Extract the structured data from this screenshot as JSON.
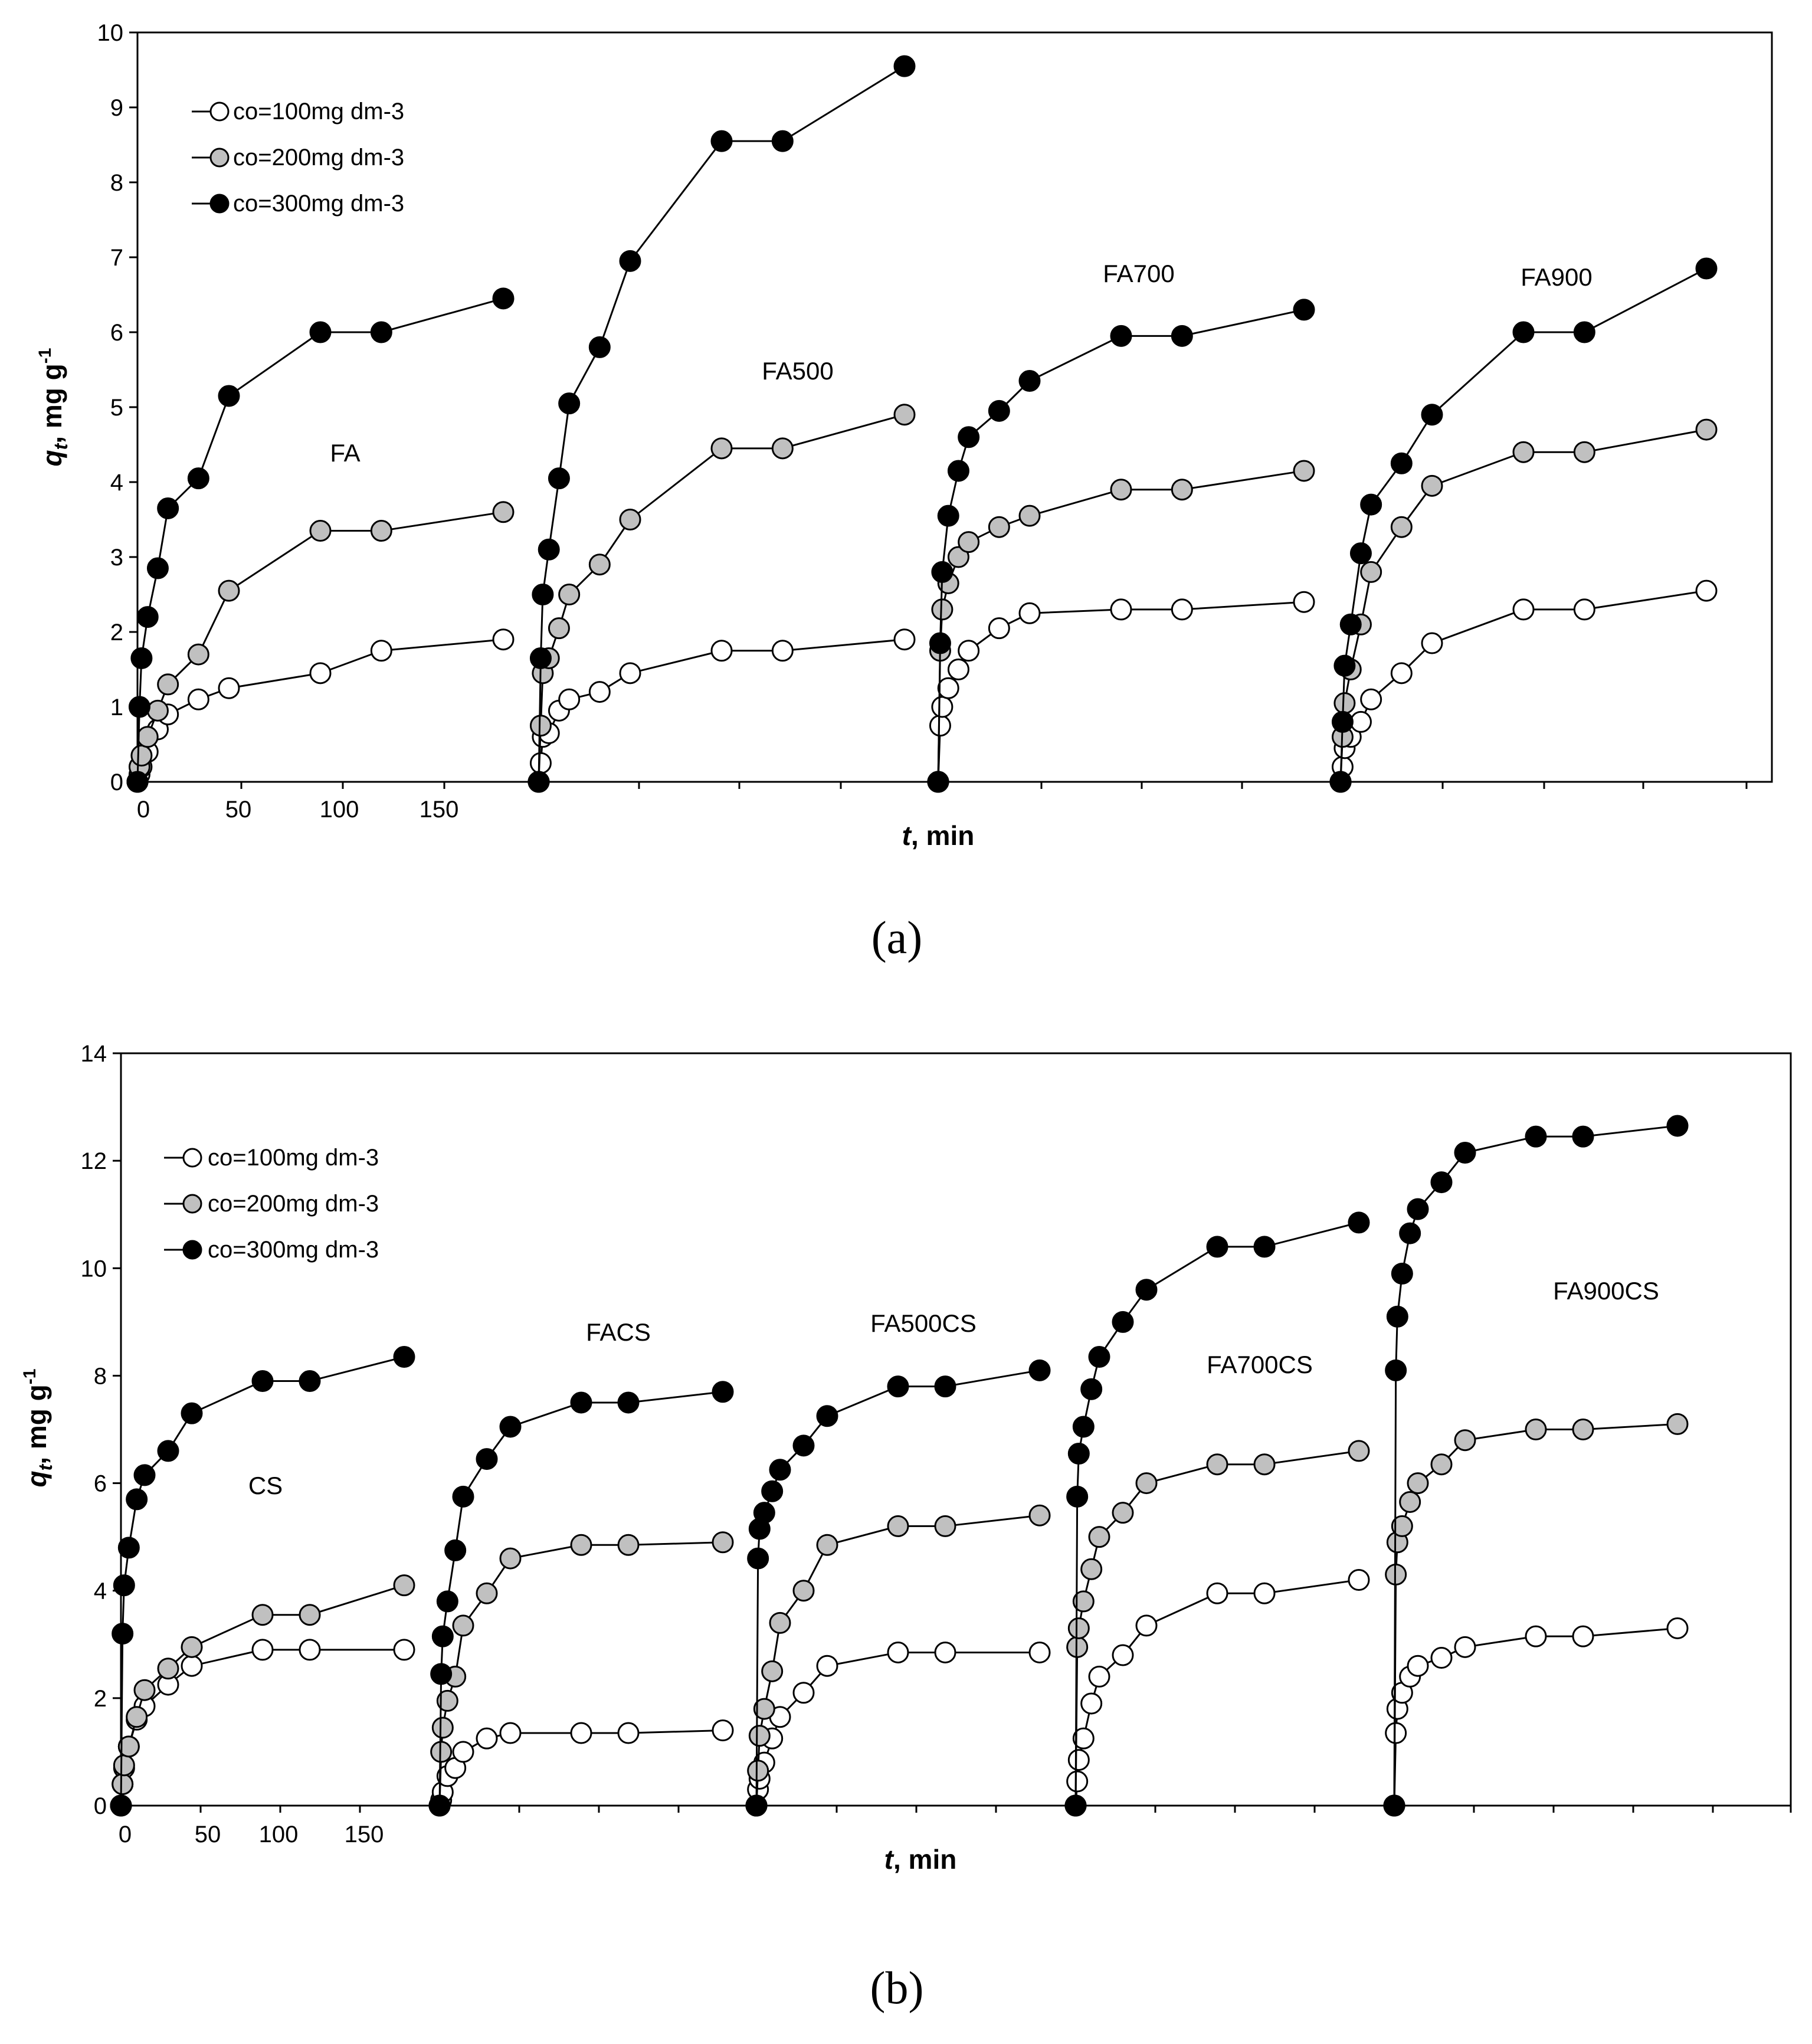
{
  "figure_labels": {
    "a": "(a)",
    "b": "(b)"
  },
  "legend": [
    {
      "label": "co=100mg dm-3",
      "fill": "#ffffff"
    },
    {
      "label": "co=200mg dm-3",
      "fill": "#c0c0c0"
    },
    {
      "label": "co=300mg dm-3",
      "fill": "#000000"
    }
  ],
  "axis_text": {
    "y_prefix": "q",
    "y_sub": "t",
    "y_unit": ", mg g",
    "y_exp": "-1",
    "x_prefix": "t",
    "x_unit": ", min"
  },
  "chart_data": [
    {
      "panel": "a",
      "type": "scatter",
      "ylim": [
        0,
        10
      ],
      "yticks": [
        0,
        1,
        2,
        3,
        4,
        5,
        6,
        7,
        8,
        9,
        10
      ],
      "x_tick_labels": [
        "0",
        "50",
        "100",
        "150"
      ],
      "xlabel": "t, min",
      "ylabel": "qt, mg g-1",
      "time_points_min": [
        0,
        1,
        2,
        5,
        10,
        15,
        30,
        45,
        90,
        120,
        180
      ],
      "groups": [
        {
          "name": "FA",
          "series": [
            {
              "name": "co=100mg dm-3",
              "values": [
                0,
                0.1,
                0.2,
                0.4,
                0.7,
                0.9,
                1.1,
                1.25,
                1.45,
                1.75,
                1.9
              ]
            },
            {
              "name": "co=200mg dm-3",
              "values": [
                0,
                0.2,
                0.35,
                0.6,
                0.95,
                1.3,
                1.7,
                2.55,
                3.35,
                3.35,
                3.6
              ]
            },
            {
              "name": "co=300mg dm-3",
              "values": [
                0,
                1.0,
                1.65,
                2.2,
                2.85,
                3.65,
                4.05,
                5.15,
                6.0,
                6.0,
                6.45
              ]
            }
          ]
        },
        {
          "name": "FA500",
          "series": [
            {
              "name": "co=100mg dm-3",
              "values": [
                0,
                0.25,
                0.6,
                0.65,
                0.95,
                1.1,
                1.2,
                1.45,
                1.75,
                1.75,
                1.9
              ]
            },
            {
              "name": "co=200mg dm-3",
              "values": [
                0,
                0.75,
                1.45,
                1.65,
                2.05,
                2.5,
                2.9,
                3.5,
                4.45,
                4.45,
                4.9
              ]
            },
            {
              "name": "co=300mg dm-3",
              "values": [
                0,
                1.65,
                2.5,
                3.1,
                4.05,
                5.05,
                5.8,
                6.95,
                8.55,
                8.55,
                9.55
              ]
            }
          ]
        },
        {
          "name": "FA700",
          "series": [
            {
              "name": "co=100mg dm-3",
              "values": [
                0,
                0.75,
                1.0,
                1.25,
                1.5,
                1.75,
                2.05,
                2.25,
                2.3,
                2.3,
                2.4
              ]
            },
            {
              "name": "co=200mg dm-3",
              "values": [
                0,
                1.75,
                2.3,
                2.65,
                3.0,
                3.2,
                3.4,
                3.55,
                3.9,
                3.9,
                4.15
              ]
            },
            {
              "name": "co=300mg dm-3",
              "values": [
                0,
                1.85,
                2.8,
                3.55,
                4.15,
                4.6,
                4.95,
                5.35,
                5.95,
                5.95,
                6.3
              ]
            }
          ]
        },
        {
          "name": "FA900",
          "series": [
            {
              "name": "co=100mg dm-3",
              "values": [
                0,
                0.2,
                0.45,
                0.6,
                0.8,
                1.1,
                1.45,
                1.85,
                2.3,
                2.3,
                2.55
              ]
            },
            {
              "name": "co=200mg dm-3",
              "values": [
                0,
                0.6,
                1.05,
                1.5,
                2.1,
                2.8,
                3.4,
                3.95,
                4.4,
                4.4,
                4.7
              ]
            },
            {
              "name": "co=300mg dm-3",
              "values": [
                0,
                0.8,
                1.55,
                2.1,
                3.05,
                3.7,
                4.25,
                4.9,
                6.0,
                6.0,
                6.85
              ]
            }
          ]
        }
      ]
    },
    {
      "panel": "b",
      "type": "scatter",
      "ylim": [
        0,
        14
      ],
      "yticks": [
        0,
        2,
        4,
        6,
        8,
        10,
        12,
        14
      ],
      "x_tick_labels": [
        "0",
        "50",
        "100",
        "150"
      ],
      "xlabel": "t, min",
      "ylabel": "qt, mg g-1",
      "time_points_min": [
        0,
        1,
        2,
        5,
        10,
        15,
        30,
        45,
        90,
        120,
        180
      ],
      "groups": [
        {
          "name": "CS",
          "series": [
            {
              "name": "co=100mg dm-3",
              "values": [
                0,
                0.4,
                0.7,
                1.1,
                1.6,
                1.85,
                2.25,
                2.6,
                2.9,
                2.9,
                2.9
              ]
            },
            {
              "name": "co=200mg dm-3",
              "values": [
                0,
                0.4,
                0.75,
                1.1,
                1.65,
                2.15,
                2.55,
                2.95,
                3.55,
                3.55,
                4.1
              ]
            },
            {
              "name": "co=300mg dm-3",
              "values": [
                0,
                3.2,
                4.1,
                4.8,
                5.7,
                6.15,
                6.6,
                7.3,
                7.9,
                7.9,
                8.35
              ]
            }
          ]
        },
        {
          "name": "FACS",
          "series": [
            {
              "name": "co=100mg dm-3",
              "values": [
                0,
                0.1,
                0.25,
                0.55,
                0.7,
                1.0,
                1.25,
                1.35,
                1.35,
                1.35,
                1.4
              ]
            },
            {
              "name": "co=200mg dm-3",
              "values": [
                0,
                1.0,
                1.45,
                1.95,
                2.4,
                3.35,
                3.95,
                4.6,
                4.85,
                4.85,
                4.9
              ]
            },
            {
              "name": "co=300mg dm-3",
              "values": [
                0,
                2.45,
                3.15,
                3.8,
                4.75,
                5.75,
                6.45,
                7.05,
                7.5,
                7.5,
                7.7
              ]
            }
          ]
        },
        {
          "name": "FA500CS",
          "series": [
            {
              "name": "co=100mg dm-3",
              "values": [
                0,
                0.3,
                0.5,
                0.8,
                1.25,
                1.65,
                2.1,
                2.6,
                2.85,
                2.85,
                2.85
              ]
            },
            {
              "name": "co=200mg dm-3",
              "values": [
                0,
                0.65,
                1.3,
                1.8,
                2.5,
                3.4,
                4.0,
                4.85,
                5.2,
                5.2,
                5.4
              ]
            },
            {
              "name": "co=300mg dm-3",
              "values": [
                0,
                4.6,
                5.15,
                5.45,
                5.85,
                6.25,
                6.7,
                7.25,
                7.8,
                7.8,
                8.1
              ]
            }
          ]
        },
        {
          "name": "FA700CS",
          "series": [
            {
              "name": "co=100mg dm-3",
              "values": [
                0,
                0.45,
                0.85,
                1.25,
                1.9,
                2.4,
                2.8,
                3.35,
                3.95,
                3.95,
                4.2
              ]
            },
            {
              "name": "co=200mg dm-3",
              "values": [
                0,
                2.95,
                3.3,
                3.8,
                4.4,
                5.0,
                5.45,
                6.0,
                6.35,
                6.35,
                6.6
              ]
            },
            {
              "name": "co=300mg dm-3",
              "values": [
                0,
                5.75,
                6.55,
                7.05,
                7.75,
                8.35,
                9.0,
                9.6,
                10.4,
                10.4,
                10.85
              ]
            }
          ]
        },
        {
          "name": "FA900CS",
          "series": [
            {
              "name": "co=100mg dm-3",
              "values": [
                0,
                1.35,
                1.8,
                2.1,
                2.4,
                2.6,
                2.75,
                2.95,
                3.15,
                3.15,
                3.3
              ]
            },
            {
              "name": "co=200mg dm-3",
              "values": [
                0,
                4.3,
                4.9,
                5.2,
                5.65,
                6.0,
                6.35,
                6.8,
                7.0,
                7.0,
                7.1
              ]
            },
            {
              "name": "co=300mg dm-3",
              "values": [
                0,
                8.1,
                9.1,
                9.9,
                10.65,
                11.1,
                11.6,
                12.15,
                12.45,
                12.45,
                12.65
              ]
            }
          ]
        }
      ]
    }
  ]
}
